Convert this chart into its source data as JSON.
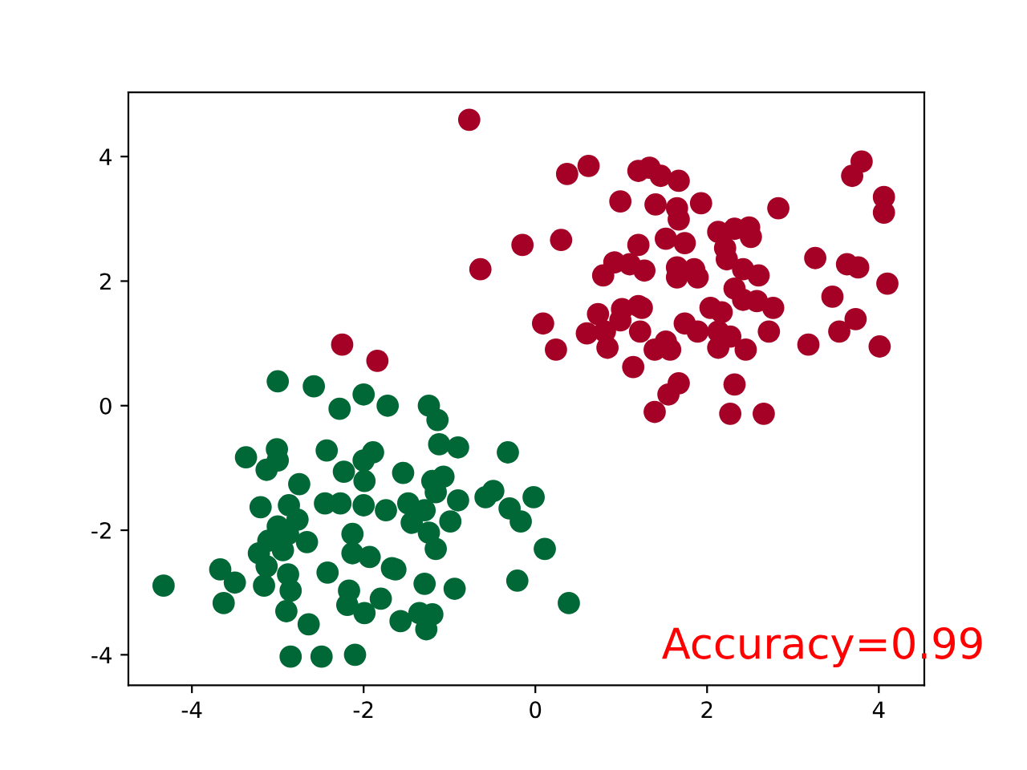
{
  "chart_data": {
    "type": "scatter",
    "xlim": [
      -4.74,
      4.53
    ],
    "ylim": [
      -4.49,
      5.03
    ],
    "xticks": [
      -4,
      -2,
      0,
      2,
      4
    ],
    "yticks": [
      -4,
      -2,
      0,
      2,
      4
    ],
    "grid": false,
    "legend": false,
    "marker": "circle",
    "annotations": [
      "Accuracy=0.99"
    ],
    "series": [
      {
        "color": "#a50026",
        "x": [
          -0.77,
          0.37,
          0.62,
          1.2,
          1.33,
          1.46,
          1.67,
          0.99,
          1.4,
          1.65,
          1.67,
          0.3,
          -0.15,
          1.2,
          -0.64,
          0.79,
          0.92,
          1.1,
          1.65,
          1.65,
          0.73,
          1.01,
          1.2,
          0.99,
          0.09,
          0.6,
          0.81,
          0.84,
          1.22,
          0.24,
          1.14,
          1.93,
          2.83,
          3.8,
          3.69,
          4.06,
          4.06,
          1.52,
          1.74,
          2.13,
          2.32,
          2.49,
          2.51,
          2.21,
          2.23,
          1.27,
          1.85,
          1.89,
          2.42,
          2.6,
          2.32,
          3.26,
          3.63,
          3.76,
          4.1,
          3.46,
          2.42,
          2.58,
          2.77,
          2.04,
          2.17,
          1.24,
          1.74,
          1.89,
          2.13,
          2.27,
          1.39,
          1.52,
          1.57,
          2.13,
          2.45,
          2.72,
          3.18,
          3.54,
          3.73,
          4.01,
          1.67,
          1.55,
          2.32,
          1.39,
          2.27,
          2.66,
          -2.25,
          -1.84
        ],
        "values": [
          4.59,
          3.72,
          3.85,
          3.77,
          3.82,
          3.69,
          3.61,
          3.28,
          3.23,
          3.17,
          2.99,
          2.66,
          2.58,
          2.58,
          2.19,
          2.09,
          2.3,
          2.27,
          2.22,
          2.06,
          1.47,
          1.55,
          1.6,
          1.37,
          1.32,
          1.16,
          1.19,
          0.93,
          1.19,
          0.9,
          0.62,
          3.25,
          3.17,
          3.92,
          3.69,
          3.35,
          3.1,
          2.68,
          2.61,
          2.79,
          2.84,
          2.86,
          2.71,
          2.53,
          2.35,
          2.17,
          2.19,
          2.06,
          2.19,
          2.09,
          1.88,
          2.37,
          2.27,
          2.22,
          1.96,
          1.75,
          1.7,
          1.68,
          1.57,
          1.57,
          1.5,
          1.57,
          1.32,
          1.19,
          1.19,
          1.11,
          0.9,
          1.03,
          0.9,
          0.93,
          0.9,
          1.19,
          0.98,
          1.19,
          1.39,
          0.95,
          0.36,
          0.18,
          0.34,
          -0.1,
          -0.13,
          -0.13,
          0.98,
          0.72
        ]
      },
      {
        "color": "#006837",
        "x": [
          -3.0,
          -2.58,
          -2.28,
          -2.0,
          -1.72,
          -3.37,
          -3.01,
          -3.0,
          -3.13,
          -2.43,
          -2.23,
          -2.0,
          -1.89,
          -1.99,
          -1.54,
          -2.75,
          -3.2,
          -2.87,
          -2.45,
          -2.27,
          -2.0,
          -1.74,
          -1.48,
          -1.44,
          -2.77,
          -3.0,
          -3.11,
          -2.66,
          -2.88,
          -3.22,
          -2.94,
          -2.13,
          -2.13,
          -1.93,
          -3.13,
          -3.67,
          -3.5,
          -3.63,
          -4.33,
          -3.16,
          -2.88,
          -2.85,
          -2.42,
          -2.17,
          -2.19,
          -1.99,
          -1.8,
          -1.63,
          -1.57,
          -2.9,
          -2.64,
          -2.85,
          -2.49,
          -2.1,
          -1.24,
          -1.14,
          -1.12,
          -0.9,
          -0.32,
          -1.2,
          -1.07,
          -1.16,
          -0.9,
          -0.58,
          -0.49,
          -0.02,
          -0.3,
          -0.17,
          0.11,
          -1.29,
          -1.24,
          -0.99,
          -1.16,
          -1.67,
          -1.29,
          -0.94,
          -0.21,
          0.39,
          -1.35,
          -1.2,
          -1.27
        ],
        "values": [
          0.39,
          0.31,
          -0.05,
          0.18,
          0,
          -0.83,
          -0.7,
          -0.88,
          -1.03,
          -0.72,
          -1.06,
          -0.88,
          -0.75,
          -1.21,
          -1.08,
          -1.26,
          -1.63,
          -1.6,
          -1.57,
          -1.57,
          -1.6,
          -1.68,
          -1.57,
          -1.88,
          -1.83,
          -1.94,
          -2.17,
          -2.19,
          -2.06,
          -2.37,
          -2.32,
          -2.06,
          -2.37,
          -2.43,
          -2.58,
          -2.63,
          -2.84,
          -3.17,
          -2.89,
          -2.89,
          -2.71,
          -2.97,
          -2.68,
          -2.97,
          -3.2,
          -3.33,
          -3.1,
          -2.63,
          -3.46,
          -3.3,
          -3.51,
          -4.03,
          -4.03,
          -4.0,
          0,
          -0.23,
          -0.62,
          -0.67,
          -0.75,
          -1.21,
          -1.14,
          -1.39,
          -1.52,
          -1.47,
          -1.37,
          -1.47,
          -1.65,
          -1.86,
          -2.3,
          -1.68,
          -2.04,
          -1.86,
          -2.3,
          -2.61,
          -2.86,
          -2.94,
          -2.81,
          -3.17,
          -3.33,
          -3.35,
          -3.59
        ]
      }
    ]
  }
}
